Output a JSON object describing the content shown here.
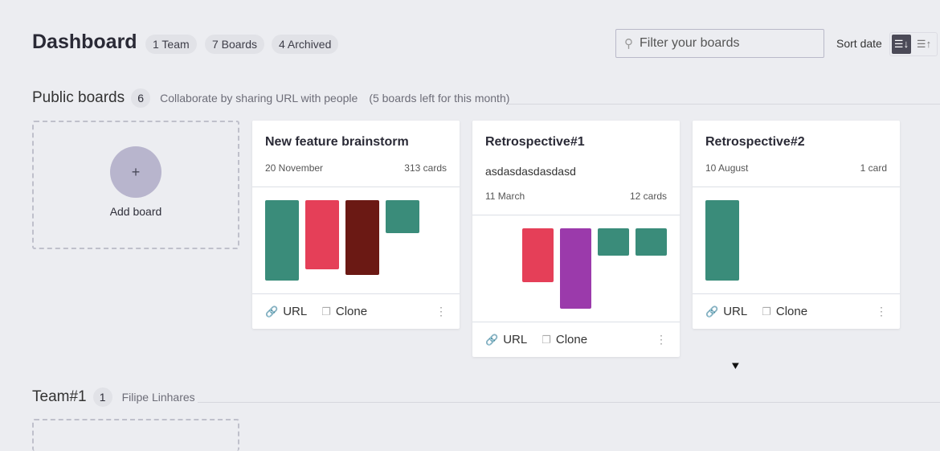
{
  "header": {
    "title": "Dashboard",
    "pills": [
      "1 Team",
      "7 Boards",
      "4 Archived"
    ],
    "search_placeholder": "Filter your boards",
    "sort_label": "Sort date",
    "sort_desc_icon": "sort-descending-icon",
    "sort_asc_icon": "sort-ascending-icon"
  },
  "public": {
    "title": "Public boards",
    "count": "6",
    "subtitle": "Collaborate by sharing URL with people",
    "limit": "(5 boards left for this month)",
    "add_label": "Add board",
    "add_symbol": "+"
  },
  "boards": [
    {
      "name": "New feature brainstorm",
      "description": "",
      "date": "20 November",
      "cards": "313 cards",
      "columns": [
        {
          "color": "#3a8c7a",
          "level": 1.0
        },
        {
          "color": "#e53f58",
          "level": 0.86
        },
        {
          "color": "#6b1914",
          "level": 0.93
        },
        {
          "color": "#3a8c7a",
          "level": 0.41
        }
      ]
    },
    {
      "name": "Retrospective#1",
      "description": "asdasdasdasdasd",
      "date": "11 March",
      "cards": "12 cards",
      "columns": [
        {
          "color": "#e53f58",
          "level": 0.67
        },
        {
          "color": "#9b3aab",
          "level": 1.0
        },
        {
          "color": "#3a8c7a",
          "level": 0.34
        },
        {
          "color": "#3a8c7a",
          "level": 0.34
        }
      ]
    },
    {
      "name": "Retrospective#2",
      "description": "",
      "date": "10 August",
      "cards": "1 card",
      "columns": [
        {
          "color": "#3a8c7a",
          "level": 1.0
        }
      ]
    }
  ],
  "footer": {
    "url": "URL",
    "clone": "Clone",
    "more": "⋮"
  },
  "team": {
    "title": "Team#1",
    "count": "1",
    "member": "Filipe Linhares"
  }
}
